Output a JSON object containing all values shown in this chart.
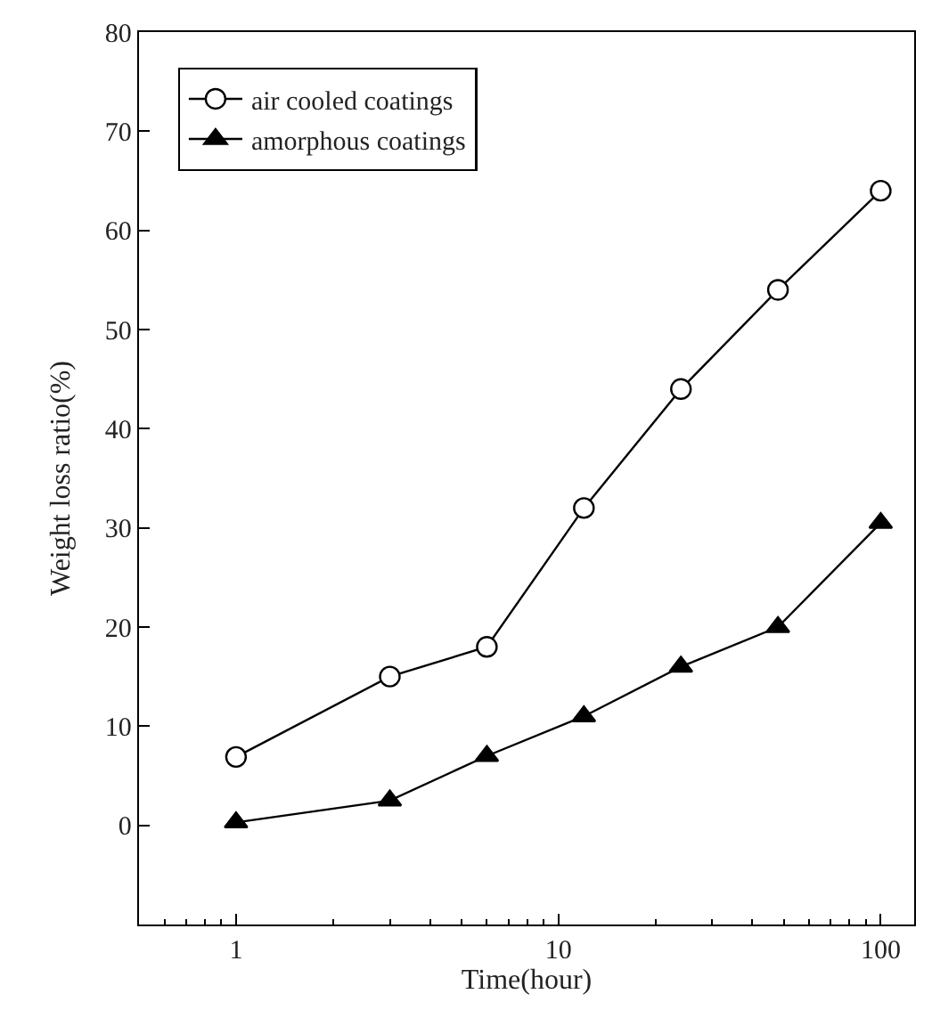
{
  "chart_data": {
    "type": "line",
    "xlabel": "Time(hour)",
    "ylabel": "Weight loss ratio(%)",
    "log": "x",
    "xlim": [
      0.5,
      127
    ],
    "xticks": [
      1,
      10,
      100
    ],
    "ylim": [
      -10,
      80
    ],
    "yticks": [
      0,
      10,
      20,
      30,
      40,
      50,
      60,
      70,
      80
    ],
    "legend": "top left",
    "line_style": "solid",
    "x": [
      1,
      3,
      6,
      12,
      24,
      48,
      100
    ],
    "series": [
      {
        "name": "air cooled coatings",
        "color": "#000000",
        "marker": "circle",
        "values": [
          6.9,
          15,
          18,
          32,
          44,
          54,
          64
        ]
      },
      {
        "name": "amorphous coatings",
        "color": "#000000",
        "marker": "triangle",
        "values": [
          0.3,
          2.5,
          7,
          11,
          16,
          20,
          30.5
        ]
      }
    ]
  }
}
